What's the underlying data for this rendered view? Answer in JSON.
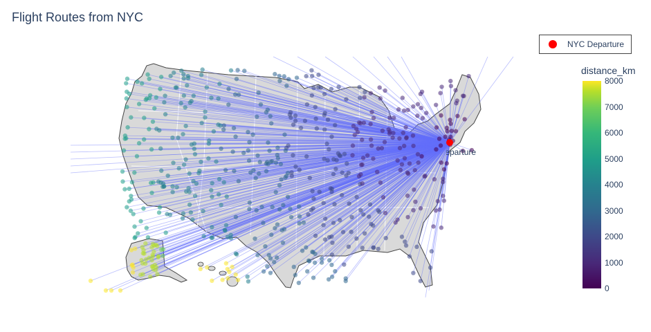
{
  "title": "Flight Routes from NYC",
  "legend": {
    "label": "NYC Departure",
    "marker_color": "#ff0000"
  },
  "annotation": "NYC Departure",
  "colorbar": {
    "title": "distance_km",
    "min": 0,
    "max": 8000,
    "ticks": [
      "8000",
      "7000",
      "6000",
      "5000",
      "4000",
      "3000",
      "2000",
      "1000",
      "0"
    ],
    "colorscale": "viridis"
  },
  "colors": {
    "route_line": "#636efa",
    "land": "#d9d9d9",
    "departure": "#ff0000",
    "text": "#2a3f5f"
  }
}
